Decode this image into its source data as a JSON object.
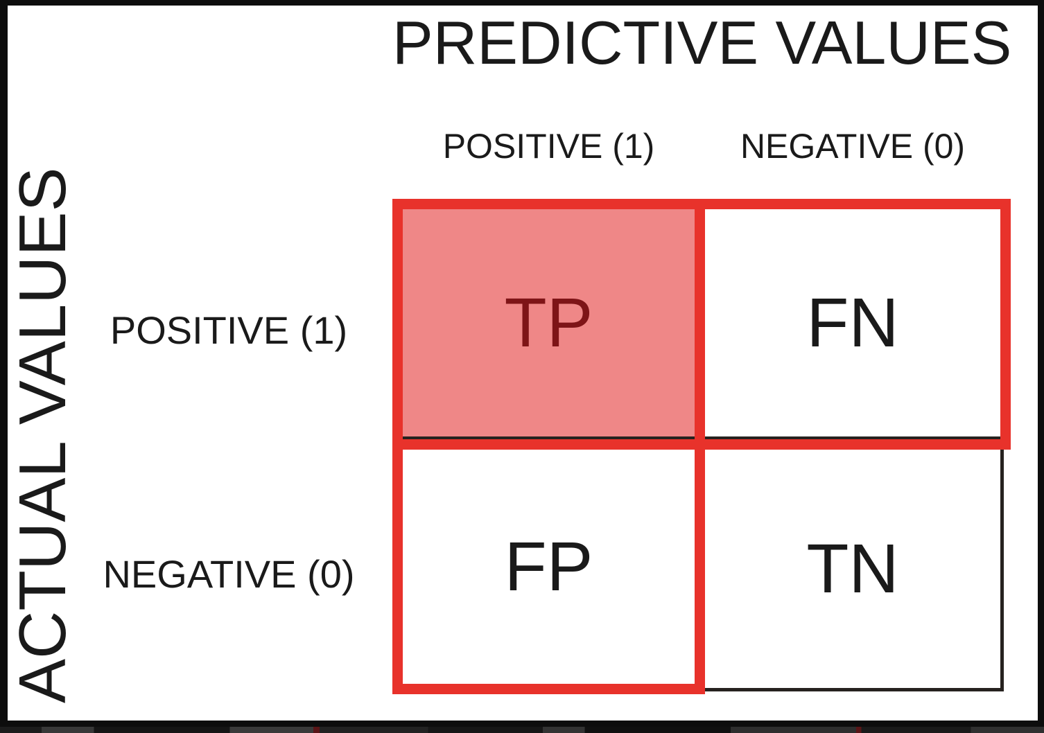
{
  "diagram": {
    "title": "PREDICTIVE VALUES",
    "y_axis_label": "ACTUAL VALUES",
    "columns": [
      {
        "label": "POSITIVE (1)"
      },
      {
        "label": "NEGATIVE (0)"
      }
    ],
    "rows": [
      {
        "label": "POSITIVE (1)"
      },
      {
        "label": "NEGATIVE (0)"
      }
    ],
    "cells": {
      "tp": {
        "label": "TP",
        "highlighted": true
      },
      "fn": {
        "label": "FN",
        "highlighted": false
      },
      "fp": {
        "label": "FP",
        "highlighted": false
      },
      "tn": {
        "label": "TN",
        "highlighted": false
      }
    },
    "colors": {
      "highlight_fill": "#ef8787",
      "highlight_border": "#e8322b",
      "highlight_text": "#7e1417",
      "text": "#1a1a1a",
      "frame": "#0d0d0d"
    }
  }
}
